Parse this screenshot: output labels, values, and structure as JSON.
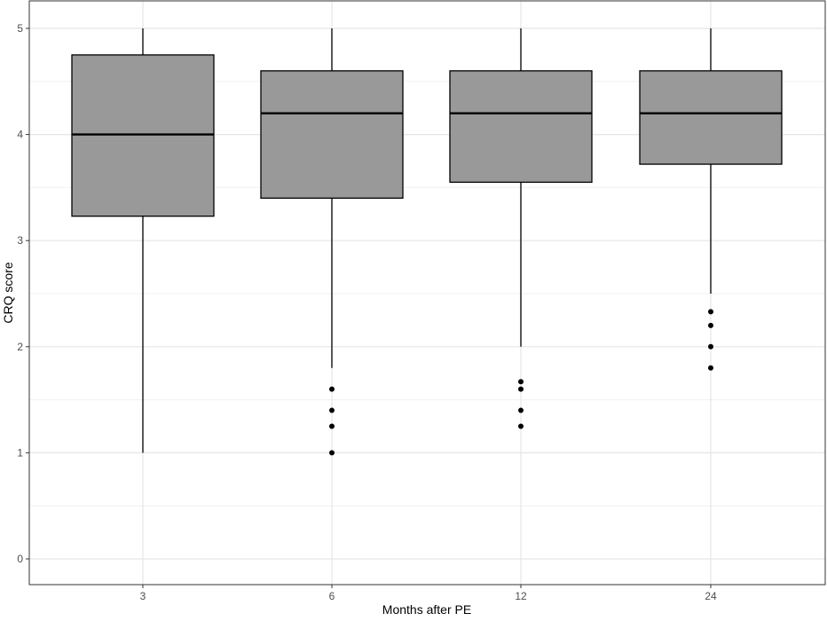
{
  "chart_data": {
    "type": "boxplot",
    "title": "",
    "xlabel": "Months after PE",
    "ylabel": "CRQ score",
    "ylim": [
      -0.2,
      5.1
    ],
    "y_ticks": [
      0,
      1,
      2,
      3,
      4,
      5
    ],
    "y_tick_labels": [
      "0",
      "1",
      "2",
      "3",
      "4",
      "5"
    ],
    "grid": true,
    "categories": [
      "3",
      "6",
      "12",
      "24"
    ],
    "boxes": [
      {
        "category": "3",
        "whisker_low": 1.0,
        "q1": 3.23,
        "median": 4.0,
        "q3": 4.75,
        "whisker_high": 5.0,
        "outliers": []
      },
      {
        "category": "6",
        "whisker_low": 1.8,
        "q1": 3.4,
        "median": 4.2,
        "q3": 4.6,
        "whisker_high": 5.0,
        "outliers": [
          1.6,
          1.4,
          1.25,
          1.0
        ]
      },
      {
        "category": "12",
        "whisker_low": 2.0,
        "q1": 3.55,
        "median": 4.2,
        "q3": 4.6,
        "whisker_high": 5.0,
        "outliers": [
          1.67,
          1.6,
          1.4,
          1.25
        ]
      },
      {
        "category": "24",
        "whisker_low": 2.5,
        "q1": 3.72,
        "median": 4.2,
        "q3": 4.6,
        "whisker_high": 5.0,
        "outliers": [
          2.33,
          2.2,
          2.0,
          1.8
        ]
      }
    ],
    "colors": {
      "box_fill": "#999999",
      "box_stroke": "#000000",
      "grid": "#e5e5e5",
      "panel_border": "#333333"
    }
  }
}
